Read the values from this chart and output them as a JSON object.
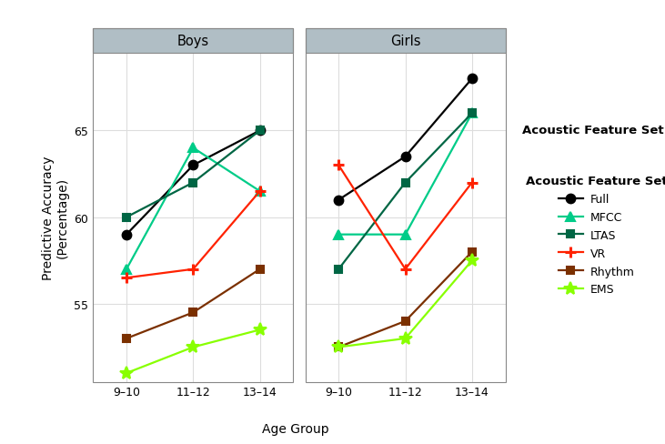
{
  "age_groups": [
    "9–10",
    "11–12",
    "13–14"
  ],
  "title_boys": "Boys",
  "title_girls": "Girls",
  "xlabel": "Age Group",
  "ylabel": "Predictive Accuracy\n(Percentage)",
  "ylim": [
    50.5,
    69.5
  ],
  "yticks": [
    55,
    60,
    65
  ],
  "legend_title": "Acoustic Feature Set",
  "features": {
    "Full": {
      "color": "#000000",
      "marker": "o",
      "boys": [
        59,
        63,
        65
      ],
      "girls": [
        61,
        63.5,
        68
      ]
    },
    "MFCC": {
      "color": "#00CC88",
      "marker": "^",
      "boys": [
        57,
        64,
        61.5
      ],
      "girls": [
        59,
        59,
        66
      ]
    },
    "LTAS": {
      "color": "#006644",
      "marker": "s",
      "boys": [
        60,
        62,
        65
      ],
      "girls": [
        57,
        62,
        66
      ]
    },
    "VR": {
      "color": "#FF2200",
      "marker": "+",
      "boys": [
        56.5,
        57,
        61.5
      ],
      "girls": [
        63,
        57,
        62
      ]
    },
    "Rhythm": {
      "color": "#7B3000",
      "marker": "s",
      "boys": [
        53,
        54.5,
        57
      ],
      "girls": [
        52.5,
        54,
        58
      ]
    },
    "EMS": {
      "color": "#88FF00",
      "marker": "*",
      "boys": [
        51,
        52.5,
        53.5
      ],
      "girls": [
        52.5,
        53,
        57.5
      ]
    }
  },
  "header_color": "#B0BEC5",
  "header_text_color": "#000000",
  "grid_color": "#DDDDDD",
  "plot_bg": "#FFFFFF",
  "fig_bg": "#FFFFFF",
  "feature_order": [
    "Full",
    "MFCC",
    "LTAS",
    "VR",
    "Rhythm",
    "EMS"
  ]
}
